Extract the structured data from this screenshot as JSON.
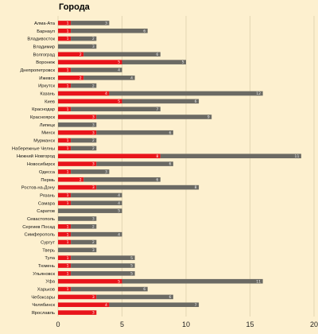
{
  "chart_data": {
    "type": "bar",
    "orientation": "horizontal",
    "stacked": true,
    "title": "Города",
    "xlabel": "",
    "ylabel": "",
    "xlim": [
      0,
      20
    ],
    "x_ticks": [
      0,
      5,
      10,
      15,
      20
    ],
    "grid": "vertical",
    "legend": "none",
    "categories": [
      "Алма-Ата",
      "Барнаул",
      "Владивосток",
      "Владимир",
      "Волгоград",
      "Воронеж",
      "Днепропетровск",
      "Ижевск",
      "Иркутск",
      "Казань",
      "Киев",
      "Краснодар",
      "Красноярск",
      "Липецк",
      "Минск",
      "Мурманск",
      "Набережные Челны",
      "Нижний Новгород",
      "Новосибирск",
      "Одесса",
      "Пермь",
      "Ростов-на-Дону",
      "Рязань",
      "Самара",
      "Саратов",
      "Севастополь",
      "Сергиев Посад",
      "Симферополь",
      "Сургут",
      "Тверь",
      "Тула",
      "Тюмень",
      "Ульяновск",
      "Уфа",
      "Харьков",
      "Чебоксары",
      "Челябинск",
      "Ярославль"
    ],
    "series": [
      {
        "color": "#e8141b",
        "values": [
          1,
          1,
          1,
          0,
          2,
          5,
          1,
          2,
          1,
          4,
          5,
          1,
          3,
          0,
          3,
          1,
          1,
          8,
          3,
          1,
          2,
          3,
          1,
          1,
          0,
          0,
          1,
          1,
          1,
          0,
          1,
          1,
          1,
          5,
          1,
          3,
          4,
          3
        ]
      },
      {
        "color": "#6b6a64",
        "values": [
          3,
          6,
          2,
          3,
          6,
          5,
          4,
          4,
          2,
          12,
          6,
          7,
          9,
          3,
          6,
          2,
          2,
          11,
          6,
          3,
          6,
          8,
          4,
          4,
          5,
          3,
          2,
          4,
          2,
          3,
          5,
          5,
          5,
          11,
          6,
          6,
          7,
          0
        ]
      }
    ]
  }
}
